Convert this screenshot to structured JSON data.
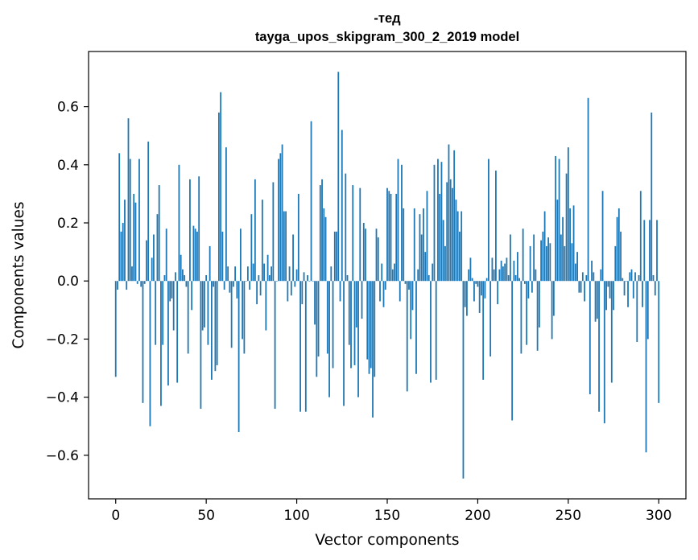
{
  "chart_data": {
    "type": "bar",
    "title": [
      "-тед",
      "tayga_upos_skipgram_300_2_2019 model"
    ],
    "xlabel": "Vector components",
    "ylabel": "Components values",
    "xlim": [
      -15,
      315
    ],
    "ylim": [
      -0.75,
      0.79
    ],
    "xticks": [
      0,
      50,
      100,
      150,
      200,
      250,
      300
    ],
    "xtick_labels": [
      "0",
      "50",
      "100",
      "150",
      "200",
      "250",
      "300"
    ],
    "yticks": [
      -0.6,
      -0.4,
      -0.2,
      0.0,
      0.2,
      0.4,
      0.6
    ],
    "ytick_labels": [
      "−0.6",
      "−0.4",
      "−0.2",
      "0.0",
      "0.2",
      "0.4",
      "0.6"
    ],
    "bar_color": "#1f77b4",
    "grid": false,
    "legend": "none",
    "values": [
      -0.33,
      -0.03,
      0.44,
      0.17,
      0.2,
      0.28,
      -0.03,
      0.56,
      0.42,
      0.05,
      0.3,
      0.27,
      -0.01,
      0.42,
      -0.02,
      -0.42,
      -0.01,
      0.14,
      0.48,
      -0.5,
      0.08,
      0.16,
      -0.22,
      0.23,
      0.33,
      -0.43,
      -0.22,
      0.02,
      0.18,
      -0.36,
      -0.07,
      -0.06,
      -0.17,
      0.03,
      -0.35,
      0.4,
      0.09,
      0.04,
      0.02,
      -0.02,
      -0.25,
      0.35,
      -0.1,
      0.19,
      0.18,
      0.17,
      0.36,
      -0.44,
      -0.17,
      -0.16,
      0.02,
      -0.22,
      0.12,
      -0.34,
      -0.02,
      -0.31,
      -0.29,
      0.58,
      0.65,
      0.17,
      -0.03,
      0.46,
      0.05,
      -0.04,
      -0.23,
      -0.02,
      0.05,
      -0.06,
      -0.52,
      0.18,
      -0.2,
      -0.25,
      0.0,
      0.05,
      -0.03,
      0.23,
      0.06,
      0.35,
      -0.08,
      0.02,
      -0.05,
      0.28,
      0.06,
      -0.17,
      0.09,
      0.02,
      0.05,
      0.34,
      -0.44,
      0.0,
      0.42,
      0.44,
      0.47,
      0.24,
      0.24,
      -0.07,
      0.05,
      -0.05,
      0.16,
      -0.02,
      0.04,
      0.3,
      -0.45,
      -0.08,
      0.03,
      -0.45,
      0.02,
      0.0,
      0.55,
      0.0,
      -0.15,
      -0.33,
      -0.26,
      0.33,
      0.35,
      0.25,
      0.22,
      -0.25,
      -0.4,
      0.05,
      -0.3,
      0.17,
      0.17,
      0.72,
      -0.07,
      0.52,
      -0.43,
      0.37,
      0.02,
      -0.22,
      -0.3,
      0.33,
      -0.29,
      -0.16,
      -0.4,
      0.32,
      -0.13,
      0.2,
      0.18,
      -0.27,
      -0.32,
      -0.3,
      -0.47,
      -0.33,
      0.18,
      0.15,
      -0.07,
      0.06,
      -0.09,
      -0.03,
      0.32,
      0.31,
      0.3,
      0.04,
      0.06,
      0.3,
      0.42,
      -0.07,
      0.4,
      0.25,
      -0.01,
      -0.38,
      -0.03,
      -0.2,
      -0.1,
      0.25,
      -0.32,
      0.04,
      0.23,
      0.16,
      0.25,
      0.1,
      0.31,
      0.02,
      -0.35,
      0.06,
      0.4,
      -0.34,
      0.42,
      0.3,
      0.41,
      0.21,
      0.12,
      0.34,
      0.47,
      0.35,
      0.32,
      0.45,
      0.28,
      0.24,
      0.17,
      0.24,
      -0.68,
      -0.09,
      -0.12,
      0.04,
      0.08,
      0.01,
      -0.07,
      -0.01,
      -0.02,
      -0.11,
      -0.05,
      -0.34,
      -0.06,
      0.01,
      0.42,
      -0.26,
      0.08,
      0.04,
      0.38,
      -0.08,
      0.04,
      0.07,
      0.05,
      0.06,
      0.08,
      0.02,
      0.16,
      -0.48,
      0.07,
      0.02,
      0.1,
      0.01,
      -0.25,
      0.18,
      -0.01,
      -0.22,
      -0.06,
      0.12,
      -0.04,
      0.16,
      0.04,
      -0.24,
      -0.16,
      0.14,
      0.17,
      0.24,
      0.12,
      0.15,
      0.13,
      -0.2,
      -0.12,
      0.43,
      0.28,
      0.42,
      0.16,
      0.22,
      0.12,
      0.37,
      0.46,
      0.25,
      0.13,
      0.26,
      0.06,
      0.1,
      -0.04,
      -0.04,
      0.03,
      -0.07,
      0.02,
      0.63,
      -0.39,
      0.07,
      0.03,
      -0.14,
      -0.13,
      -0.45,
      0.04,
      0.31,
      -0.49,
      -0.1,
      -0.02,
      -0.06,
      -0.35,
      -0.1,
      0.12,
      0.22,
      0.25,
      0.17,
      0.01,
      -0.05,
      0.0,
      -0.09,
      0.03,
      0.04,
      -0.06,
      0.03,
      -0.21,
      0.02,
      0.31,
      -0.09,
      0.21,
      -0.59,
      -0.2,
      0.21,
      0.58,
      0.02,
      -0.05,
      0.21,
      -0.42
    ]
  }
}
